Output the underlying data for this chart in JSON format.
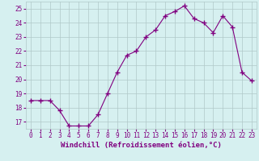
{
  "x": [
    0,
    1,
    2,
    3,
    4,
    5,
    6,
    7,
    8,
    9,
    10,
    11,
    12,
    13,
    14,
    15,
    16,
    17,
    18,
    19,
    20,
    21,
    22,
    23
  ],
  "y": [
    18.5,
    18.5,
    18.5,
    17.8,
    16.7,
    16.7,
    16.7,
    17.5,
    19.0,
    20.5,
    21.7,
    22.0,
    23.0,
    23.5,
    24.5,
    24.8,
    25.2,
    24.3,
    24.0,
    23.3,
    24.5,
    23.7,
    20.5,
    19.9
  ],
  "line_color": "#800080",
  "marker": "+",
  "marker_size": 4,
  "bg_color": "#d6f0f0",
  "grid_color": "#b0c8c8",
  "xlabel": "Windchill (Refroidissement éolien,°C)",
  "xlabel_color": "#800080",
  "ylabel_ticks": [
    17,
    18,
    19,
    20,
    21,
    22,
    23,
    24,
    25
  ],
  "xlim": [
    -0.5,
    23.5
  ],
  "ylim": [
    16.5,
    25.5
  ],
  "xtick_labels": [
    "0",
    "1",
    "2",
    "3",
    "4",
    "5",
    "6",
    "7",
    "8",
    "9",
    "10",
    "11",
    "12",
    "13",
    "14",
    "15",
    "16",
    "17",
    "18",
    "19",
    "20",
    "21",
    "22",
    "23"
  ],
  "tick_fontsize": 5.5,
  "xlabel_fontsize": 6.5
}
